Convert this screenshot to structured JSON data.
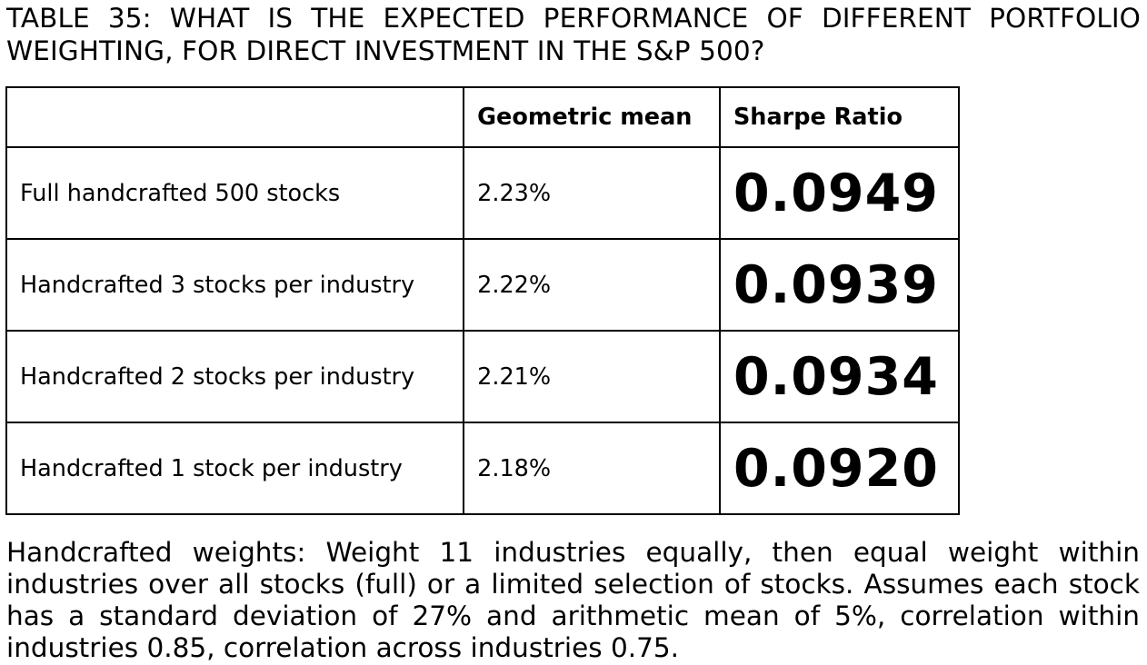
{
  "title": "TABLE 35: WHAT IS THE EXPECTED PERFORMANCE OF DIFFERENT PORTFOLIO WEIGHTING, FOR DIRECT INVESTMENT IN THE S&P 500?",
  "table": {
    "headers": [
      "",
      "Geometric mean",
      "Sharpe Ratio"
    ],
    "rows": [
      {
        "label": "Full handcrafted 500 stocks",
        "geometric_mean": "2.23%",
        "sharpe_ratio": "0.0949"
      },
      {
        "label": "Handcrafted 3 stocks per industry",
        "geometric_mean": "2.22%",
        "sharpe_ratio": "0.0939"
      },
      {
        "label": "Handcrafted 2 stocks per industry",
        "geometric_mean": "2.21%",
        "sharpe_ratio": "0.0934"
      },
      {
        "label": "Handcrafted 1 stock per industry",
        "geometric_mean": "2.18%",
        "sharpe_ratio": "0.0920"
      }
    ]
  },
  "footnote": "Handcrafted weights: Weight 11 industries equally, then equal weight within industries over all stocks (full) or a limited selection of stocks. Assumes each stock has a standard deviation of 27% and arithmetic mean of 5%, correlation within industries 0.85, correlation across industries 0.75."
}
